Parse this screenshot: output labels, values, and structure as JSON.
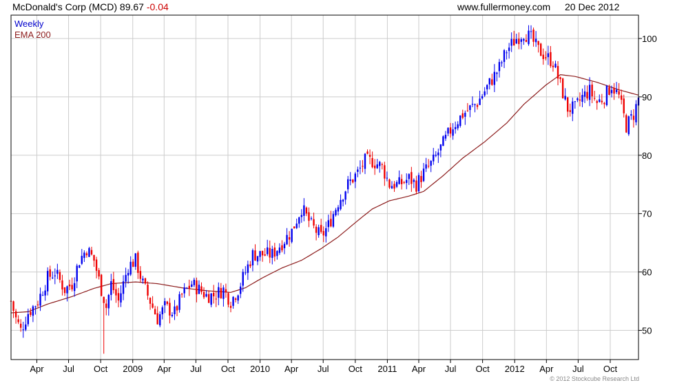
{
  "header": {
    "name": "McDonald's Corp (MCD)",
    "price": "89.67",
    "change": "-0.04",
    "site": "www.fullermoney.com",
    "date": "20 Dec 2012"
  },
  "legend": {
    "weekly": "Weekly",
    "ema": "EMA 200"
  },
  "copyright": "© 2012 Stockcube Research Ltd",
  "colors": {
    "up": "#0000ee",
    "down": "#ee0000",
    "ema": "#8b1a1a",
    "grid": "#cccccc",
    "frame": "#000000"
  },
  "chart_data": {
    "type": "candlestick",
    "frequency": "weekly",
    "y_ticks": [
      50,
      60,
      70,
      80,
      90,
      100
    ],
    "y_range": [
      45,
      104
    ],
    "x_range": [
      "2008-01-18",
      "2012-12-21"
    ],
    "x_ticks": [
      {
        "label": "Apr",
        "date": "2008-04-01"
      },
      {
        "label": "Jul",
        "date": "2008-07-01"
      },
      {
        "label": "Oct",
        "date": "2008-10-01"
      },
      {
        "label": "2009",
        "date": "2009-01-01"
      },
      {
        "label": "Apr",
        "date": "2009-04-01"
      },
      {
        "label": "Jul",
        "date": "2009-07-01"
      },
      {
        "label": "Oct",
        "date": "2009-10-01"
      },
      {
        "label": "2010",
        "date": "2010-01-01"
      },
      {
        "label": "Apr",
        "date": "2010-04-01"
      },
      {
        "label": "Jul",
        "date": "2010-07-01"
      },
      {
        "label": "Oct",
        "date": "2010-10-01"
      },
      {
        "label": "2011",
        "date": "2011-01-01"
      },
      {
        "label": "Apr",
        "date": "2011-04-01"
      },
      {
        "label": "Jul",
        "date": "2011-07-01"
      },
      {
        "label": "Oct",
        "date": "2011-10-01"
      },
      {
        "label": "2012",
        "date": "2012-01-01"
      },
      {
        "label": "Apr",
        "date": "2012-04-01"
      },
      {
        "label": "Jul",
        "date": "2012-07-01"
      },
      {
        "label": "Oct",
        "date": "2012-10-01"
      }
    ],
    "price_path": [
      [
        "2008-01-18",
        55
      ],
      [
        "2008-02-01",
        52
      ],
      [
        "2008-02-15",
        50
      ],
      [
        "2008-03-07",
        53
      ],
      [
        "2008-04-04",
        55
      ],
      [
        "2008-05-02",
        59
      ],
      [
        "2008-05-23",
        60
      ],
      [
        "2008-06-20",
        57
      ],
      [
        "2008-07-11",
        58
      ],
      [
        "2008-08-01",
        62
      ],
      [
        "2008-08-22",
        64
      ],
      [
        "2008-09-12",
        62
      ],
      [
        "2008-10-03",
        57
      ],
      [
        "2008-10-17",
        54
      ],
      [
        "2008-10-31",
        58
      ],
      [
        "2008-11-21",
        55
      ],
      [
        "2008-12-19",
        61
      ],
      [
        "2009-01-09",
        62
      ],
      [
        "2009-01-30",
        58
      ],
      [
        "2009-02-20",
        55
      ],
      [
        "2009-03-13",
        52
      ],
      [
        "2009-04-03",
        54
      ],
      [
        "2009-05-01",
        53
      ],
      [
        "2009-05-22",
        56
      ],
      [
        "2009-06-19",
        58
      ],
      [
        "2009-07-10",
        57
      ],
      [
        "2009-07-31",
        56
      ],
      [
        "2009-08-21",
        56
      ],
      [
        "2009-09-18",
        57
      ],
      [
        "2009-10-09",
        55
      ],
      [
        "2009-10-30",
        57
      ],
      [
        "2009-11-20",
        60
      ],
      [
        "2009-12-11",
        63
      ],
      [
        "2010-01-08",
        63
      ],
      [
        "2010-02-05",
        63
      ],
      [
        "2010-03-05",
        65
      ],
      [
        "2010-04-02",
        67
      ],
      [
        "2010-04-30",
        71
      ],
      [
        "2010-05-28",
        68
      ],
      [
        "2010-06-25",
        66
      ],
      [
        "2010-07-16",
        68
      ],
      [
        "2010-08-13",
        72
      ],
      [
        "2010-09-10",
        75
      ],
      [
        "2010-10-08",
        77
      ],
      [
        "2010-10-29",
        79
      ],
      [
        "2010-11-19",
        79
      ],
      [
        "2010-12-17",
        78
      ],
      [
        "2011-01-07",
        75
      ],
      [
        "2011-02-04",
        75
      ],
      [
        "2011-03-04",
        76
      ],
      [
        "2011-03-25",
        75
      ],
      [
        "2011-04-15",
        77
      ],
      [
        "2011-05-13",
        79
      ],
      [
        "2011-06-10",
        82
      ],
      [
        "2011-07-08",
        85
      ],
      [
        "2011-08-05",
        87
      ],
      [
        "2011-08-26",
        88
      ],
      [
        "2011-09-16",
        89
      ],
      [
        "2011-10-07",
        91
      ],
      [
        "2011-10-28",
        93
      ],
      [
        "2011-11-18",
        95
      ],
      [
        "2011-12-09",
        98
      ],
      [
        "2012-01-06",
        100
      ],
      [
        "2012-01-27",
        101
      ],
      [
        "2012-02-17",
        100
      ],
      [
        "2012-03-09",
        98
      ],
      [
        "2012-03-30",
        97
      ],
      [
        "2012-04-20",
        96
      ],
      [
        "2012-05-11",
        92
      ],
      [
        "2012-06-01",
        88
      ],
      [
        "2012-06-22",
        88
      ],
      [
        "2012-07-13",
        90
      ],
      [
        "2012-08-03",
        91
      ],
      [
        "2012-08-24",
        89
      ],
      [
        "2012-09-14",
        90
      ],
      [
        "2012-10-05",
        92
      ],
      [
        "2012-10-26",
        90
      ],
      [
        "2012-11-16",
        85
      ],
      [
        "2012-12-07",
        87
      ],
      [
        "2012-12-21",
        89.67
      ]
    ],
    "ema_path": [
      [
        "2008-01-18",
        53
      ],
      [
        "2008-03-07",
        53.2
      ],
      [
        "2008-05-02",
        54.5
      ],
      [
        "2008-07-11",
        55.8
      ],
      [
        "2008-09-12",
        57.2
      ],
      [
        "2008-10-31",
        58.0
      ],
      [
        "2009-01-09",
        58.3
      ],
      [
        "2009-03-13",
        58.0
      ],
      [
        "2009-05-22",
        57.3
      ],
      [
        "2009-07-31",
        56.8
      ],
      [
        "2009-10-09",
        56.5
      ],
      [
        "2009-11-20",
        57.3
      ],
      [
        "2010-01-08",
        59.0
      ],
      [
        "2010-03-05",
        60.7
      ],
      [
        "2010-04-30",
        62.0
      ],
      [
        "2010-06-25",
        64.0
      ],
      [
        "2010-08-13",
        66.0
      ],
      [
        "2010-10-08",
        68.8
      ],
      [
        "2010-11-19",
        70.8
      ],
      [
        "2011-01-07",
        72.2
      ],
      [
        "2011-03-04",
        73.0
      ],
      [
        "2011-04-15",
        73.8
      ],
      [
        "2011-06-10",
        76.5
      ],
      [
        "2011-08-05",
        79.5
      ],
      [
        "2011-10-07",
        82.3
      ],
      [
        "2011-12-09",
        85.5
      ],
      [
        "2012-01-27",
        88.7
      ],
      [
        "2012-03-30",
        92.0
      ],
      [
        "2012-05-11",
        93.8
      ],
      [
        "2012-06-22",
        93.5
      ],
      [
        "2012-08-24",
        92.5
      ],
      [
        "2012-10-26",
        91.2
      ],
      [
        "2012-12-21",
        90.3
      ]
    ],
    "notable_lows": [
      [
        "2008-10-10",
        46
      ]
    ]
  }
}
